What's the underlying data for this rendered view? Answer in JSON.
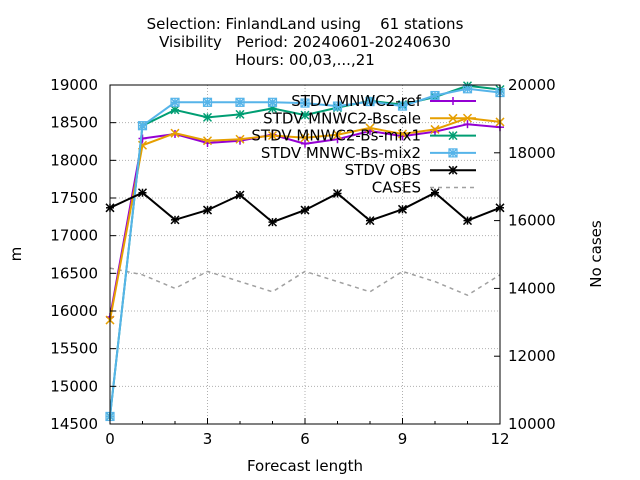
{
  "chart_data": {
    "type": "line",
    "title_lines": [
      "Selection: FinlandLand using    61 stations",
      "Visibility   Period: 20240601-20240630",
      "Hours: 00,03,...,21"
    ],
    "xlabel": "Forecast length",
    "ylabel": "m",
    "y2label": "No cases",
    "xlim": [
      0,
      12
    ],
    "ylim": [
      14500,
      19000
    ],
    "y2lim": [
      10000,
      20000
    ],
    "xticks": [
      "0",
      "3",
      "6",
      "9",
      "12"
    ],
    "yticks": [
      "14500",
      "15000",
      "15500",
      "16000",
      "16500",
      "17000",
      "17500",
      "18000",
      "18500",
      "19000"
    ],
    "y2ticks": [
      "10000",
      "12000",
      "14000",
      "16000",
      "18000",
      "20000"
    ],
    "grid": true,
    "legend_position": "top-right",
    "x": [
      0,
      1,
      2,
      3,
      4,
      5,
      6,
      7,
      8,
      9,
      10,
      11,
      12
    ],
    "series": [
      {
        "name": "STDV MNWC2-ref",
        "axis": "y",
        "color": "#9400d3",
        "marker": "plus",
        "dashed": false,
        "values": [
          15920,
          18290,
          18350,
          18230,
          18260,
          18340,
          18220,
          18280,
          18390,
          18320,
          18380,
          18480,
          18440
        ]
      },
      {
        "name": "STDV MNWC2-Bscale",
        "axis": "y",
        "color": "#e69f00",
        "marker": "cross",
        "dashed": false,
        "values": [
          15880,
          18200,
          18360,
          18260,
          18280,
          18330,
          18300,
          18340,
          18430,
          18350,
          18410,
          18560,
          18510
        ]
      },
      {
        "name": "STDV MNWC2-Bs-mix1",
        "axis": "y",
        "color": "#009e73",
        "marker": "star",
        "dashed": false,
        "values": [
          14600,
          18460,
          18670,
          18570,
          18610,
          18690,
          18600,
          18700,
          18790,
          18740,
          18840,
          18990,
          18940
        ]
      },
      {
        "name": "STDV MNWC-Bs-mix2",
        "axis": "y",
        "color": "#56b4e9",
        "marker": "box",
        "dashed": false,
        "values": [
          14600,
          18460,
          18770,
          18770,
          18770,
          18770,
          18760,
          18720,
          18780,
          18720,
          18860,
          18950,
          18900
        ]
      },
      {
        "name": "STDV OBS",
        "axis": "y",
        "color": "#000000",
        "marker": "star",
        "dashed": false,
        "values": [
          17370,
          17570,
          17210,
          17340,
          17540,
          17180,
          17340,
          17560,
          17200,
          17350,
          17570,
          17200,
          17370
        ]
      },
      {
        "name": "CASES",
        "axis": "y2",
        "color": "#a0a0a0",
        "marker": "none",
        "dashed": true,
        "values": [
          14600,
          14400,
          14000,
          14500,
          14200,
          13900,
          14500,
          14200,
          13900,
          14500,
          14200,
          13800,
          14400
        ]
      }
    ]
  }
}
